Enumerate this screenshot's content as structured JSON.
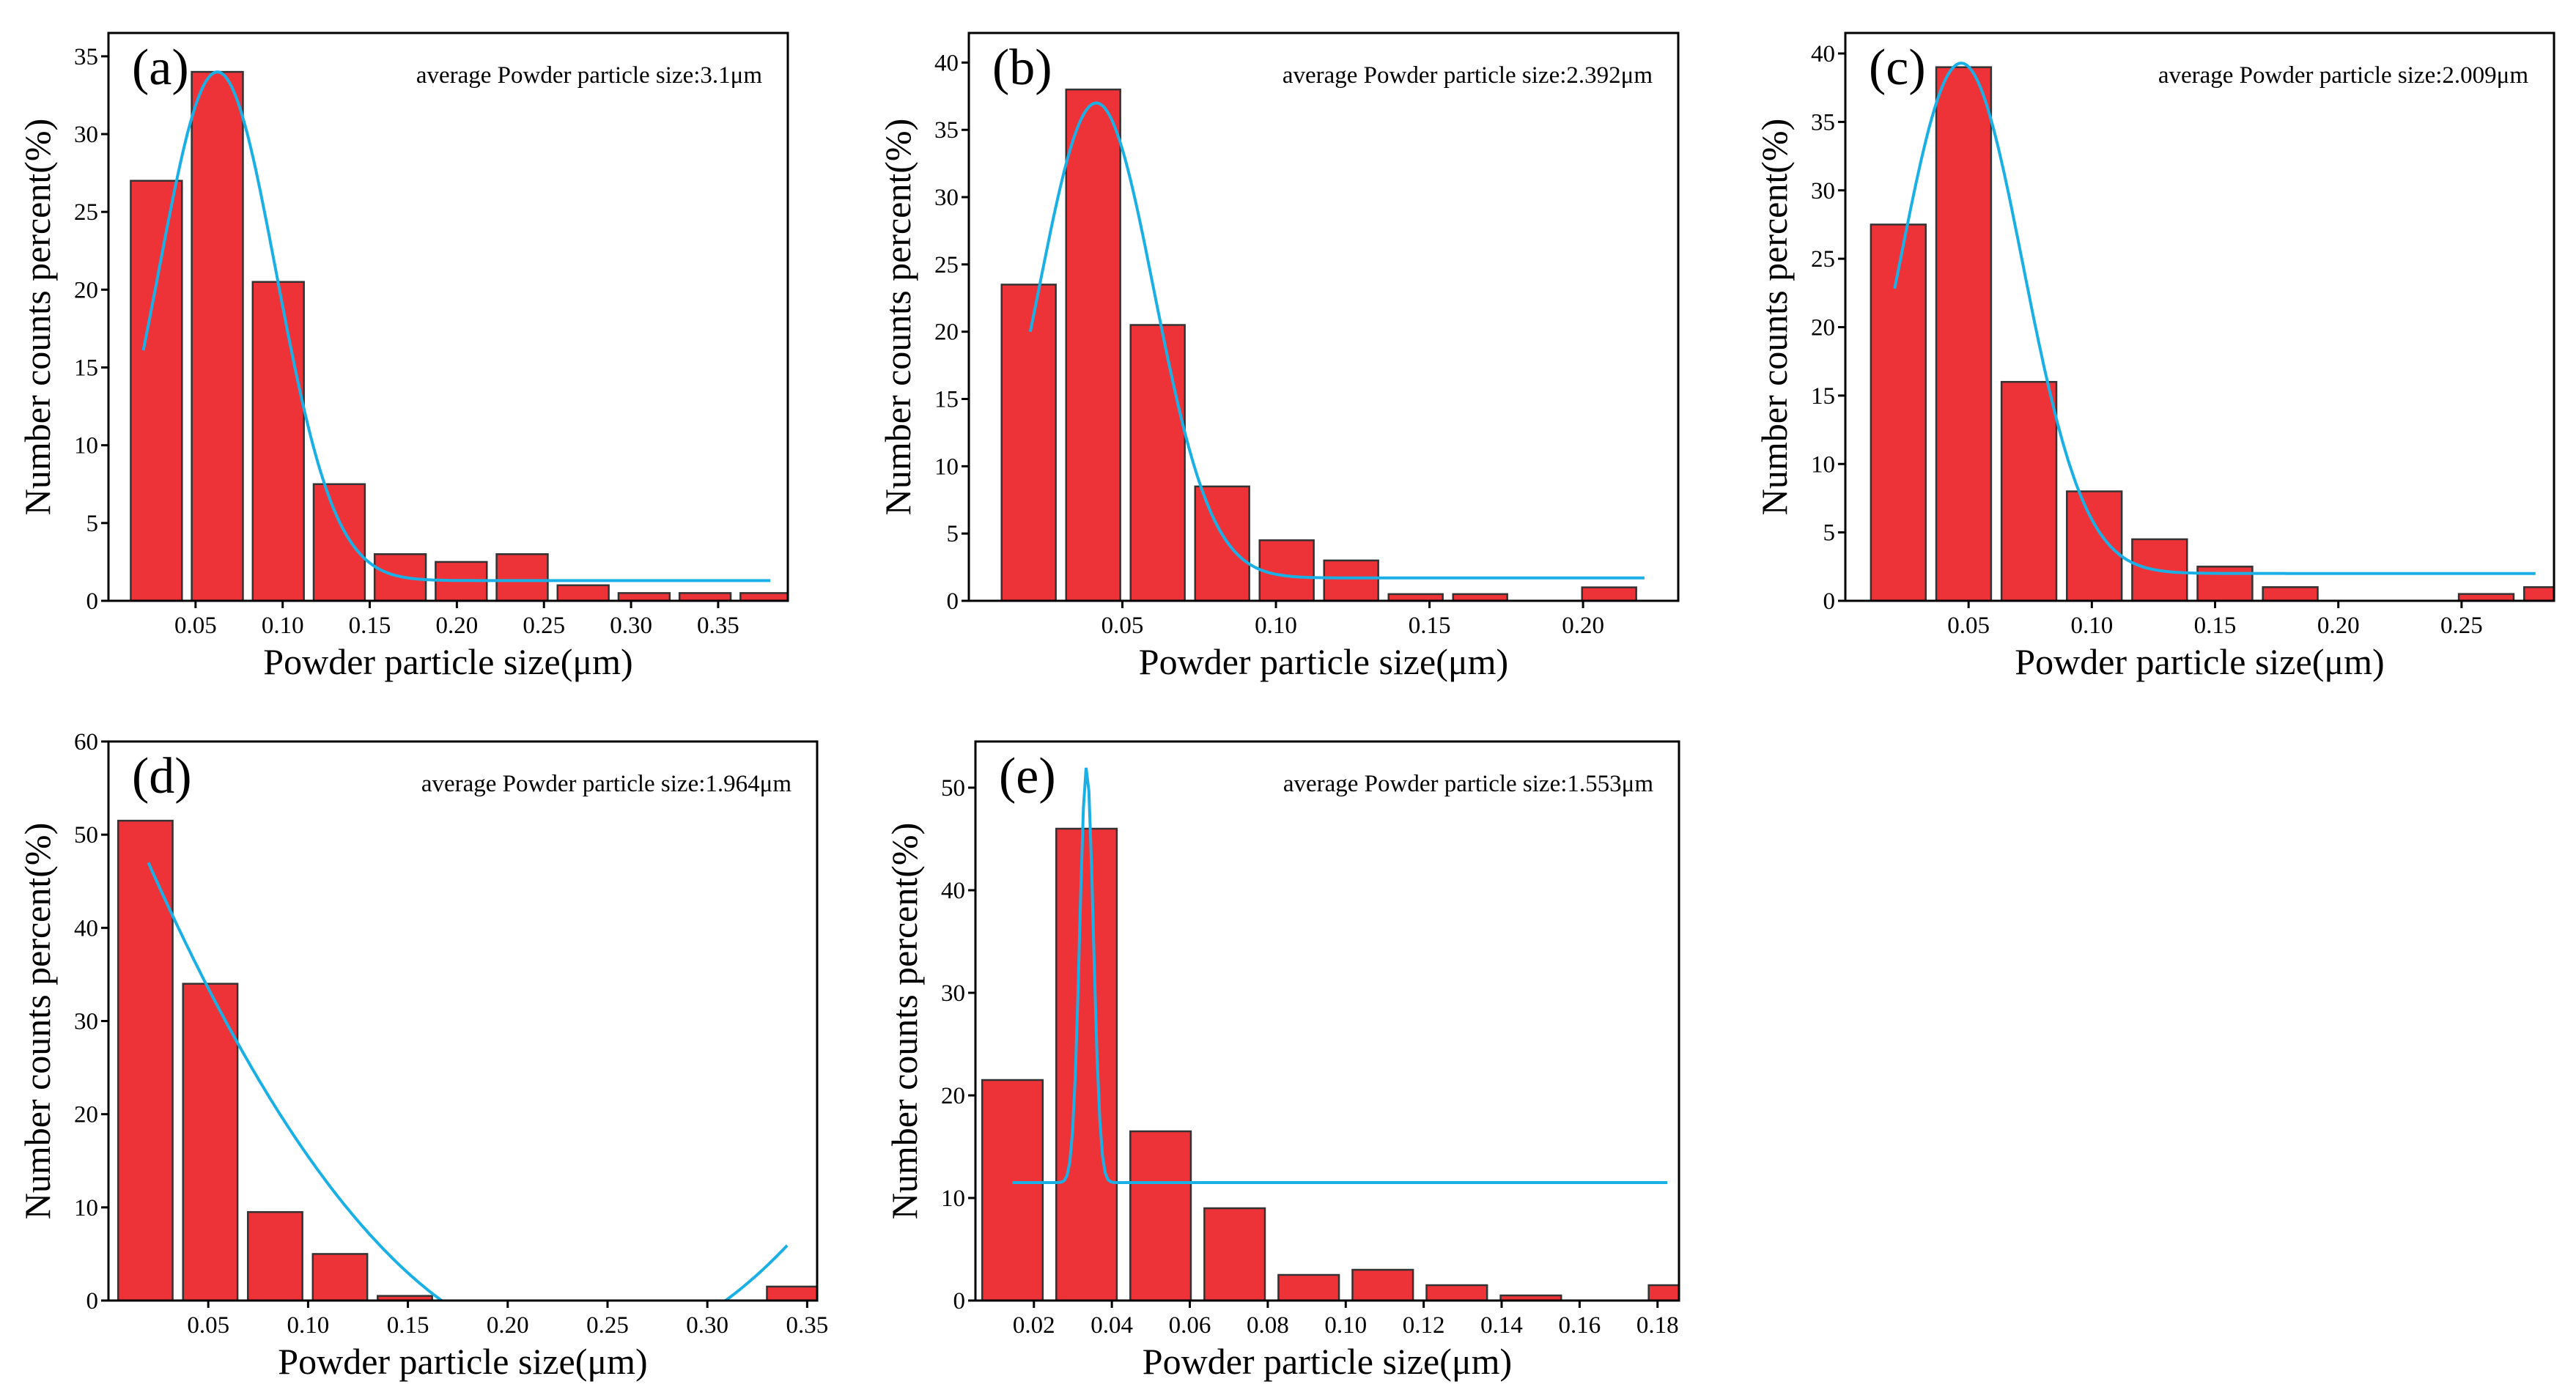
{
  "chart_data": [
    {
      "type": "bar",
      "panel": "(a)",
      "annotation": "average Powder particle size:3.1μm",
      "xlabel": "Powder particle size(μm)",
      "ylabel": "Number counts percent(%)",
      "xlim": [
        0.0,
        0.39
      ],
      "ylim": [
        0,
        36.5
      ],
      "xticks": [
        0.05,
        0.1,
        0.15,
        0.2,
        0.25,
        0.3,
        0.35
      ],
      "xtick_labels": [
        "0.05",
        "0.10",
        "0.15",
        "0.20",
        "0.25",
        "0.30",
        "0.35"
      ],
      "yticks": [
        0,
        5,
        10,
        15,
        20,
        25,
        30,
        35
      ],
      "ytick_labels": [
        "0",
        "5",
        "10",
        "15",
        "20",
        "25",
        "30",
        "35"
      ],
      "bin_width": 0.035,
      "x": [
        0.0275,
        0.0625,
        0.0975,
        0.1325,
        0.1675,
        0.2025,
        0.2375,
        0.2725,
        0.3075,
        0.3425,
        0.3775
      ],
      "values": [
        27,
        34,
        20.5,
        7.5,
        3,
        2.5,
        3,
        1,
        0.5,
        0.5,
        0.5
      ],
      "fit": {
        "type": "gauss",
        "xc": 0.0625,
        "w": 0.0675,
        "A": 32.7,
        "y0": 1.3,
        "x_range": [
          0.02,
          0.38
        ]
      }
    },
    {
      "type": "bar",
      "panel": "(b)",
      "annotation": "average Powder particle size:2.392μm",
      "xlabel": "Powder particle size(μm)",
      "ylabel": "Number counts percent(%)",
      "xlim": [
        0.0,
        0.231
      ],
      "ylim": [
        0,
        42.2
      ],
      "xticks": [
        0.05,
        0.1,
        0.15,
        0.2
      ],
      "xtick_labels": [
        "0.05",
        "0.10",
        "0.15",
        "0.20"
      ],
      "yticks": [
        0,
        5,
        10,
        15,
        20,
        25,
        30,
        35,
        40
      ],
      "ytick_labels": [
        "0",
        "5",
        "10",
        "15",
        "20",
        "25",
        "30",
        "35",
        "40"
      ],
      "bin_width": 0.021,
      "x": [
        0.0195,
        0.0405,
        0.0615,
        0.0825,
        0.1035,
        0.1245,
        0.1455,
        0.1665,
        0.2085
      ],
      "values": [
        23.5,
        38,
        20.5,
        8.5,
        4.5,
        3,
        0.5,
        0.5,
        1
      ],
      "fit": {
        "type": "gauss",
        "xc": 0.0415,
        "w": 0.0375,
        "A": 35.3,
        "y0": 1.7,
        "x_range": [
          0.02,
          0.22
        ]
      }
    },
    {
      "type": "bar",
      "panel": "(c)",
      "annotation": "average Powder particle size:2.009μm",
      "xlabel": "Powder particle size(μm)",
      "ylabel": "Number counts percent(%)",
      "xlim": [
        0.0,
        0.2875
      ],
      "ylim": [
        0,
        41.5
      ],
      "xticks": [
        0.05,
        0.1,
        0.15,
        0.2,
        0.25
      ],
      "xtick_labels": [
        "0.05",
        "0.10",
        "0.15",
        "0.20",
        "0.25"
      ],
      "yticks": [
        0,
        5,
        10,
        15,
        20,
        25,
        30,
        35,
        40
      ],
      "ytick_labels": [
        "0",
        "5",
        "10",
        "15",
        "20",
        "25",
        "30",
        "35",
        "40"
      ],
      "bin_width": 0.0265,
      "x": [
        0.0215,
        0.048,
        0.0745,
        0.101,
        0.1275,
        0.154,
        0.1805,
        0.207,
        0.26,
        0.2865
      ],
      "values": [
        27.5,
        39,
        16,
        8,
        4.5,
        2.5,
        1,
        0,
        0.5,
        1
      ],
      "fit": {
        "type": "gauss",
        "xc": 0.047,
        "w": 0.05,
        "A": 37.3,
        "y0": 2.0,
        "x_range": [
          0.02,
          0.28
        ]
      }
    },
    {
      "type": "bar",
      "panel": "(d)",
      "annotation": "average Powder particle size:1.964μm",
      "xlabel": "Powder particle size(μm)",
      "ylabel": "Number counts percent(%)",
      "xlim": [
        0.0,
        0.355
      ],
      "ylim": [
        0,
        60
      ],
      "xticks": [
        0.05,
        0.1,
        0.15,
        0.2,
        0.25,
        0.3,
        0.35
      ],
      "xtick_labels": [
        "0.05",
        "0.10",
        "0.15",
        "0.20",
        "0.25",
        "0.30",
        "0.35"
      ],
      "yticks": [
        0,
        10,
        20,
        30,
        40,
        50,
        60
      ],
      "ytick_labels": [
        "0",
        "10",
        "20",
        "30",
        "40",
        "50",
        "60"
      ],
      "bin_width": 0.0325,
      "x": [
        0.0185,
        0.051,
        0.0835,
        0.116,
        0.1485,
        0.181,
        0.2135,
        0.246,
        0.2785,
        0.311,
        0.3435
      ],
      "values": [
        51.5,
        34,
        9.5,
        5,
        0.5,
        0,
        0,
        0,
        0,
        0,
        1.5
      ],
      "fit": {
        "type": "parabola",
        "vertex_x": 0.238,
        "vertex_y": -5.6,
        "pass_x": 0.02,
        "pass_y": 47,
        "x_range": [
          0.02,
          0.34
        ]
      }
    },
    {
      "type": "bar",
      "panel": "(e)",
      "annotation": "average Powder particle size:1.553μm",
      "xlabel": "Powder particle size(μm)",
      "ylabel": "Number counts percent(%)",
      "xlim": [
        0.005,
        0.1855
      ],
      "ylim": [
        0,
        54.5
      ],
      "xticks": [
        0.02,
        0.04,
        0.06,
        0.08,
        0.1,
        0.12,
        0.14,
        0.16,
        0.18
      ],
      "xtick_labels": [
        "0.02",
        "0.04",
        "0.06",
        "0.08",
        "0.10",
        "0.12",
        "0.14",
        "0.16",
        "0.18"
      ],
      "yticks": [
        0,
        10,
        20,
        30,
        40,
        50
      ],
      "ytick_labels": [
        "0",
        "10",
        "20",
        "30",
        "40",
        "50"
      ],
      "bin_width": 0.0185,
      "x": [
        0.0145,
        0.0335,
        0.0525,
        0.0715,
        0.0905,
        0.1095,
        0.1285,
        0.1475,
        0.1855
      ],
      "values": [
        21.5,
        46,
        16.5,
        9,
        2.5,
        3,
        1.5,
        0.5,
        1.5
      ],
      "fit": {
        "type": "gauss",
        "xc": 0.0335,
        "w": 0.0035,
        "A": 40.5,
        "y0": 11.5,
        "x_range": [
          0.0145,
          0.1825
        ]
      }
    }
  ]
}
